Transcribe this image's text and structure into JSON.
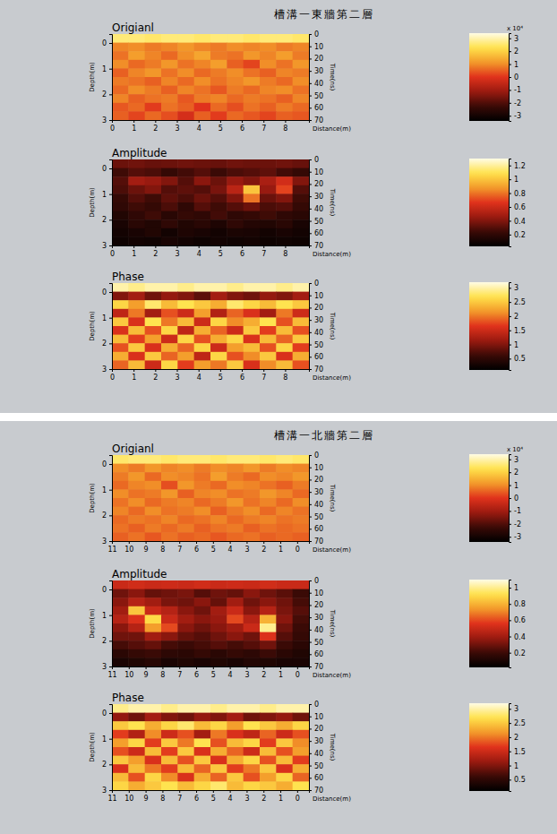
{
  "chart_data": [
    {
      "type": "heatmap",
      "title": "槽溝一東牆第二層",
      "xlabel": "Distance(m)",
      "ylabel": "Depth(m)",
      "y2label": "Time(ns)",
      "xlim": [
        0,
        9.1
      ],
      "xticks": [
        0,
        1,
        2,
        3,
        4,
        5,
        6,
        7,
        8
      ],
      "ylim": [
        -0.35,
        3
      ],
      "yticks": [
        0,
        1,
        2,
        3
      ],
      "y2lim": [
        0,
        70
      ],
      "y2ticks": [
        0,
        10,
        20,
        30,
        40,
        50,
        60,
        70
      ],
      "panels": [
        {
          "title": "Origianl",
          "cells": [
            [
              2.6,
              2.6,
              2.5,
              2.6,
              2.6,
              2.5,
              2.6,
              2.6,
              2.5,
              2.6,
              2.6,
              2.5
            ],
            [
              0.9,
              1.0,
              0.8,
              0.9,
              1.1,
              0.9,
              0.8,
              1.0,
              0.9,
              1.0,
              0.8,
              0.9
            ],
            [
              0.7,
              1.2,
              0.9,
              0.6,
              1.0,
              1.3,
              0.8,
              0.7,
              1.1,
              0.9,
              1.2,
              0.8
            ],
            [
              1.0,
              0.6,
              0.8,
              1.1,
              0.7,
              0.9,
              1.2,
              0.5,
              0.2,
              1.0,
              0.7,
              1.1
            ],
            [
              0.5,
              0.9,
              1.1,
              0.7,
              1.0,
              0.6,
              0.8,
              1.0,
              0.7,
              0.5,
              0.9,
              0.8
            ],
            [
              0.8,
              0.7,
              0.5,
              0.9,
              0.6,
              1.0,
              0.7,
              0.9,
              1.1,
              0.8,
              0.6,
              1.0
            ],
            [
              0.6,
              1.0,
              0.8,
              0.5,
              0.9,
              0.7,
              0.4,
              0.8,
              0.6,
              0.9,
              1.0,
              0.7
            ],
            [
              0.9,
              0.5,
              0.7,
              0.8,
              0.4,
              0.8,
              0.9,
              0.6,
              0.8,
              0.7,
              0.5,
              0.9
            ],
            [
              0.4,
              0.6,
              0.1,
              0.7,
              0.5,
              0.0,
              0.6,
              0.3,
              0.7,
              0.5,
              0.8,
              0.6
            ],
            [
              0.5,
              0.2,
              0.6,
              0.3,
              -0.2,
              0.5,
              0.1,
              0.6,
              0.4,
              0.2,
              0.5,
              0.4
            ]
          ],
          "colorbar": {
            "range": [
              -3.4,
              3.4
            ],
            "ticks": [
              -3,
              -2,
              -1,
              0,
              1,
              2,
              3
            ],
            "label": "x 10⁴"
          }
        },
        {
          "title": "Amplitude",
          "cells": [
            [
              0.35,
              0.36,
              0.34,
              0.35,
              0.36,
              0.35,
              0.34,
              0.36,
              0.35,
              0.35,
              0.36,
              0.34
            ],
            [
              0.25,
              0.3,
              0.28,
              0.22,
              0.26,
              0.3,
              0.24,
              0.28,
              0.3,
              0.32,
              0.26,
              0.22
            ],
            [
              0.3,
              0.48,
              0.45,
              0.4,
              0.3,
              0.42,
              0.35,
              0.45,
              0.4,
              0.5,
              0.62,
              0.4
            ],
            [
              0.28,
              0.35,
              0.4,
              0.3,
              0.32,
              0.3,
              0.38,
              0.55,
              1.0,
              0.45,
              0.7,
              0.3
            ],
            [
              0.22,
              0.3,
              0.25,
              0.32,
              0.28,
              0.35,
              0.3,
              0.4,
              0.8,
              0.35,
              0.4,
              0.25
            ],
            [
              0.2,
              0.25,
              0.22,
              0.28,
              0.2,
              0.3,
              0.25,
              0.3,
              0.35,
              0.28,
              0.3,
              0.22
            ],
            [
              0.15,
              0.2,
              0.25,
              0.18,
              0.22,
              0.2,
              0.26,
              0.2,
              0.22,
              0.25,
              0.2,
              0.18
            ],
            [
              0.12,
              0.18,
              0.15,
              0.2,
              0.15,
              0.18,
              0.14,
              0.2,
              0.16,
              0.15,
              0.18,
              0.12
            ],
            [
              0.1,
              0.12,
              0.15,
              0.1,
              0.14,
              0.12,
              0.1,
              0.13,
              0.12,
              0.1,
              0.12,
              0.1
            ],
            [
              0.08,
              0.1,
              0.09,
              0.12,
              0.1,
              0.08,
              0.1,
              0.09,
              0.1,
              0.08,
              0.09,
              0.08
            ]
          ],
          "colorbar": {
            "range": [
              0.03,
              1.3
            ],
            "ticks": [
              0.2,
              0.4,
              0.6,
              0.8,
              1,
              1.2
            ]
          }
        },
        {
          "title": "Phase",
          "cells": [
            [
              3.0,
              2.9,
              3.0,
              3.0,
              2.9,
              3.0,
              3.0,
              2.9,
              3.0,
              3.0,
              2.9,
              3.0
            ],
            [
              1.0,
              1.2,
              0.9,
              1.1,
              1.0,
              0.8,
              1.2,
              1.0,
              0.9,
              1.1,
              1.0,
              1.2
            ],
            [
              2.6,
              2.2,
              2.8,
              2.4,
              2.7,
              2.5,
              2.3,
              2.8,
              2.6,
              2.4,
              2.7,
              2.5
            ],
            [
              1.4,
              2.0,
              1.2,
              1.8,
              1.5,
              2.2,
              1.3,
              1.9,
              1.6,
              1.2,
              2.0,
              1.5
            ],
            [
              2.5,
              1.6,
              2.7,
              2.0,
              2.4,
              1.5,
              2.6,
              2.1,
              2.3,
              2.7,
              1.8,
              2.4
            ],
            [
              1.6,
              2.4,
              1.8,
              2.6,
              1.4,
              2.3,
              1.9,
              1.5,
              2.5,
              1.7,
              2.4,
              1.8
            ],
            [
              2.4,
              1.7,
              2.2,
              1.5,
              2.6,
              1.8,
              2.3,
              2.6,
              1.6,
              2.4,
              1.9,
              2.5
            ],
            [
              1.8,
              2.5,
              1.6,
              2.3,
              1.9,
              2.6,
              1.5,
              2.2,
              2.4,
              1.8,
              2.6,
              1.7
            ],
            [
              2.3,
              1.6,
              2.5,
              1.9,
              2.2,
              1.4,
              2.6,
              1.8,
              2.1,
              2.5,
              1.6,
              2.3
            ],
            [
              1.9,
              2.4,
              1.5,
              2.6,
              1.7,
              2.2,
              2.0,
              2.5,
              1.6,
              2.1,
              2.4,
              1.8
            ]
          ],
          "colorbar": {
            "range": [
              0.1,
              3.2
            ],
            "ticks": [
              0.5,
              1,
              1.5,
              2,
              2.5,
              3
            ]
          }
        }
      ]
    },
    {
      "type": "heatmap",
      "title": "槽溝一北牆第二層",
      "xlabel": "Distance(m)",
      "ylabel": "Depth(m)",
      "y2label": "Time(ns)",
      "xlim": [
        11,
        -0.7
      ],
      "xticks": [
        11,
        10,
        9,
        8,
        7,
        6,
        5,
        4,
        3,
        2,
        1,
        0
      ],
      "ylim": [
        -0.35,
        3
      ],
      "yticks": [
        0,
        1,
        2,
        3
      ],
      "y2lim": [
        0,
        70
      ],
      "y2ticks": [
        0,
        10,
        20,
        30,
        40,
        50,
        60,
        70
      ],
      "panels": [
        {
          "title": "Origianl",
          "cells": [
            [
              2.5,
              2.6,
              2.6,
              2.5,
              2.6,
              2.6,
              2.5,
              2.6,
              2.6,
              2.5,
              2.6,
              2.5
            ],
            [
              1.0,
              0.8,
              1.1,
              0.9,
              1.0,
              0.8,
              1.0,
              0.9,
              1.1,
              0.8,
              1.0,
              0.9
            ],
            [
              0.8,
              1.1,
              0.6,
              1.0,
              0.9,
              0.7,
              1.2,
              0.8,
              0.6,
              1.0,
              0.9,
              1.1
            ],
            [
              0.6,
              0.9,
              1.0,
              0.3,
              1.1,
              0.8,
              0.6,
              1.0,
              0.9,
              0.7,
              0.5,
              0.8
            ],
            [
              1.0,
              0.7,
              0.8,
              1.1,
              0.5,
              0.9,
              1.0,
              0.7,
              0.8,
              1.1,
              0.9,
              0.6
            ],
            [
              0.7,
              1.0,
              0.6,
              0.8,
              0.9,
              0.6,
              0.8,
              1.1,
              0.7,
              0.9,
              0.6,
              1.0
            ],
            [
              0.9,
              0.6,
              1.0,
              0.7,
              0.8,
              1.0,
              0.5,
              0.8,
              1.0,
              0.6,
              0.9,
              0.7
            ],
            [
              0.6,
              0.8,
              0.7,
              0.9,
              0.6,
              0.7,
              0.9,
              0.6,
              0.8,
              0.9,
              0.7,
              0.8
            ],
            [
              0.7,
              0.5,
              0.8,
              0.6,
              0.8,
              0.5,
              0.7,
              0.8,
              0.5,
              0.7,
              0.6,
              0.7
            ],
            [
              0.5,
              0.7,
              0.4,
              0.7,
              0.5,
              0.6,
              0.4,
              0.6,
              0.7,
              0.5,
              0.6,
              0.5
            ]
          ],
          "colorbar": {
            "range": [
              -3.4,
              3.4
            ],
            "ticks": [
              -3,
              -2,
              -1,
              0,
              1,
              2,
              3
            ],
            "label": "x 10⁴"
          }
        },
        {
          "title": "Amplitude",
          "cells": [
            [
              0.5,
              0.52,
              0.5,
              0.51,
              0.5,
              0.52,
              0.5,
              0.51,
              0.5,
              0.52,
              0.5,
              0.5
            ],
            [
              0.3,
              0.35,
              0.28,
              0.3,
              0.32,
              0.25,
              0.3,
              0.28,
              0.35,
              0.3,
              0.26,
              0.2
            ],
            [
              0.35,
              0.45,
              0.4,
              0.32,
              0.3,
              0.35,
              0.28,
              0.4,
              0.3,
              0.35,
              0.3,
              0.22
            ],
            [
              0.4,
              0.85,
              0.5,
              0.45,
              0.35,
              0.3,
              0.4,
              0.5,
              0.35,
              0.45,
              0.32,
              0.25
            ],
            [
              0.45,
              0.55,
              0.9,
              0.5,
              0.4,
              0.35,
              0.38,
              0.6,
              0.45,
              0.8,
              0.35,
              0.22
            ],
            [
              0.35,
              0.45,
              0.75,
              0.6,
              0.35,
              0.3,
              0.35,
              0.4,
              0.5,
              1.0,
              0.3,
              0.2
            ],
            [
              0.3,
              0.3,
              0.4,
              0.35,
              0.28,
              0.25,
              0.3,
              0.35,
              0.3,
              0.55,
              0.25,
              0.18
            ],
            [
              0.22,
              0.25,
              0.28,
              0.22,
              0.2,
              0.22,
              0.25,
              0.22,
              0.25,
              0.3,
              0.2,
              0.15
            ],
            [
              0.15,
              0.18,
              0.2,
              0.16,
              0.15,
              0.18,
              0.15,
              0.18,
              0.16,
              0.2,
              0.15,
              0.12
            ],
            [
              0.1,
              0.12,
              0.14,
              0.1,
              0.12,
              0.1,
              0.12,
              0.1,
              0.13,
              0.12,
              0.1,
              0.1
            ]
          ],
          "colorbar": {
            "range": [
              0.02,
              1.1
            ],
            "ticks": [
              0.2,
              0.4,
              0.6,
              0.8,
              1
            ]
          }
        },
        {
          "title": "Phase",
          "cells": [
            [
              2.9,
              3.0,
              3.0,
              2.9,
              3.0,
              3.0,
              2.9,
              3.0,
              3.0,
              2.9,
              3.0,
              3.0
            ],
            [
              1.1,
              0.9,
              1.2,
              1.0,
              0.9,
              1.1,
              1.0,
              1.2,
              0.9,
              1.0,
              1.1,
              0.9
            ],
            [
              2.5,
              2.7,
              2.3,
              2.6,
              2.8,
              2.4,
              2.6,
              2.2,
              2.7,
              2.5,
              2.3,
              2.6
            ],
            [
              1.7,
              1.3,
              2.1,
              1.5,
              1.8,
              1.2,
              2.0,
              1.6,
              1.4,
              1.9,
              1.5,
              1.8
            ],
            [
              2.2,
              2.6,
              1.7,
              2.5,
              2.0,
              2.7,
              1.8,
              2.4,
              2.6,
              1.7,
              2.5,
              2.1
            ],
            [
              1.8,
              1.5,
              2.4,
              1.7,
              2.5,
              1.6,
              2.3,
              1.9,
              1.5,
              2.4,
              1.8,
              2.2
            ],
            [
              2.5,
              2.2,
              1.6,
              2.4,
              1.8,
              2.5,
              1.6,
              2.3,
              2.6,
              1.8,
              2.4,
              1.7
            ],
            [
              1.6,
              2.4,
              2.0,
              1.7,
              2.4,
              1.9,
              2.5,
              1.7,
              2.0,
              2.5,
              1.6,
              2.3
            ],
            [
              2.4,
              1.8,
              2.6,
              2.1,
              1.6,
              2.3,
              1.9,
              2.5,
              1.8,
              2.2,
              2.6,
              1.9
            ],
            [
              2.6,
              2.3,
              2.5,
              2.7,
              2.4,
              2.6,
              2.8,
              2.4,
              2.6,
              2.5,
              2.3,
              2.7
            ]
          ],
          "colorbar": {
            "range": [
              0.1,
              3.2
            ],
            "ticks": [
              0.5,
              1,
              1.5,
              2,
              2.5,
              3
            ]
          }
        }
      ]
    }
  ]
}
